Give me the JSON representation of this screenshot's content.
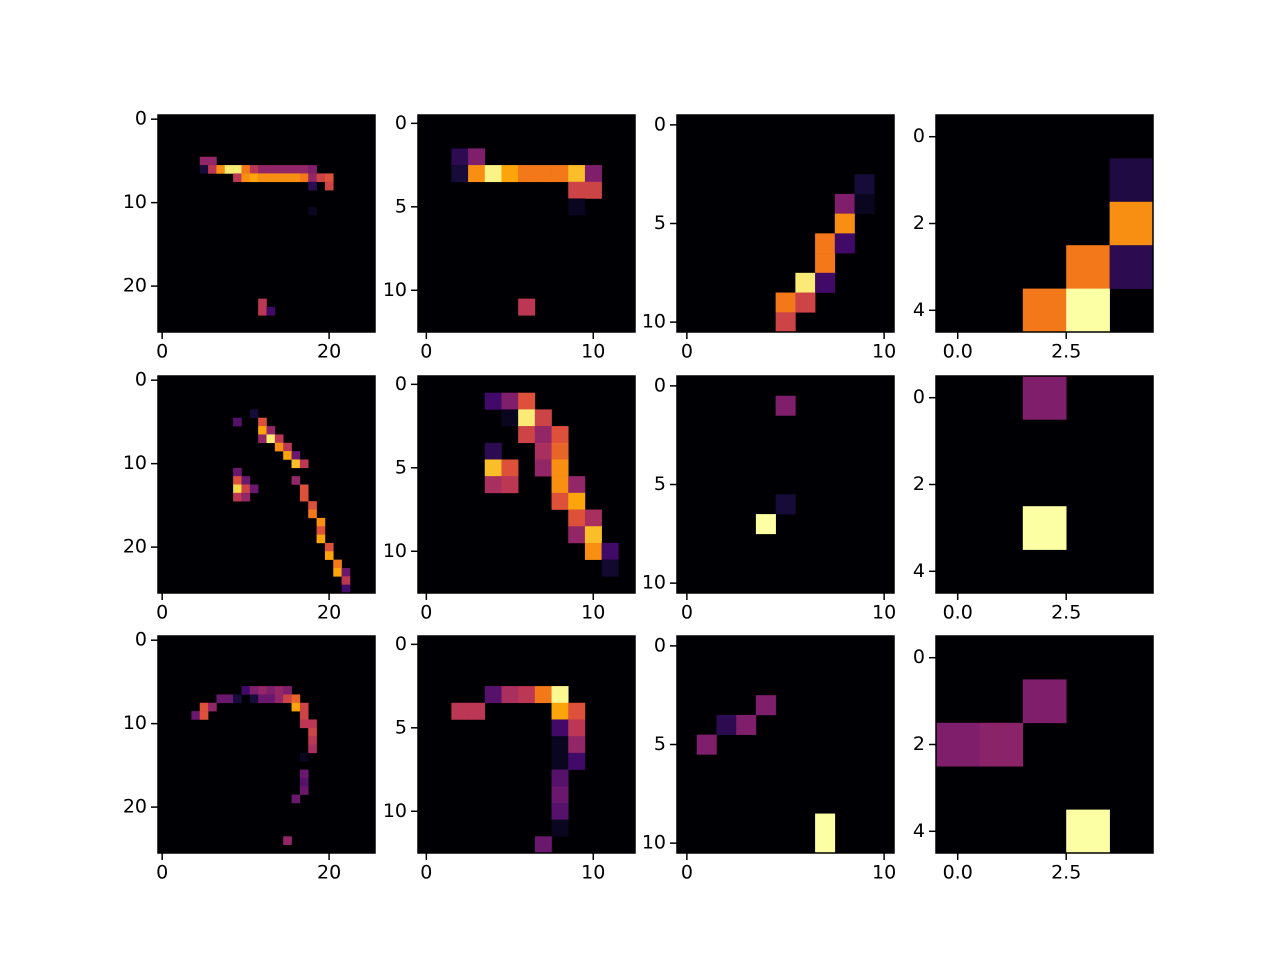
{
  "chart_data": [
    {
      "type": "heatmap",
      "colormap": "inferno",
      "xlim": [
        -0.5,
        25.5
      ],
      "ylim": [
        25.5,
        -0.5
      ],
      "xticks": [
        0,
        20
      ],
      "yticks": [
        0,
        10,
        20
      ],
      "cells": [
        [
          5,
          5,
          0.4
        ],
        [
          5,
          6,
          0.4
        ],
        [
          6,
          5,
          0.1
        ],
        [
          6,
          6,
          0.5
        ],
        [
          6,
          7,
          0.75
        ],
        [
          6,
          8,
          0.95
        ],
        [
          6,
          9,
          0.95
        ],
        [
          6,
          10,
          0.7
        ],
        [
          6,
          11,
          0.5
        ],
        [
          6,
          12,
          0.4
        ],
        [
          6,
          13,
          0.4
        ],
        [
          6,
          14,
          0.4
        ],
        [
          6,
          15,
          0.4
        ],
        [
          6,
          16,
          0.4
        ],
        [
          6,
          17,
          0.4
        ],
        [
          6,
          18,
          0.35
        ],
        [
          7,
          9,
          0.5
        ],
        [
          7,
          10,
          0.75
        ],
        [
          7,
          11,
          0.8
        ],
        [
          7,
          12,
          0.75
        ],
        [
          7,
          13,
          0.75
        ],
        [
          7,
          14,
          0.75
        ],
        [
          7,
          15,
          0.75
        ],
        [
          7,
          16,
          0.75
        ],
        [
          7,
          17,
          0.7
        ],
        [
          7,
          18,
          0.4
        ],
        [
          7,
          19,
          0.55
        ],
        [
          7,
          20,
          0.6
        ],
        [
          8,
          18,
          0.15
        ],
        [
          8,
          20,
          0.55
        ],
        [
          11,
          18,
          0.05
        ],
        [
          22,
          12,
          0.5
        ],
        [
          23,
          12,
          0.5
        ],
        [
          23,
          13,
          0.2
        ]
      ]
    },
    {
      "type": "heatmap",
      "colormap": "inferno",
      "xlim": [
        -0.5,
        12.5
      ],
      "ylim": [
        12.5,
        -0.5
      ],
      "xticks": [
        0,
        10
      ],
      "yticks": [
        0,
        5,
        10
      ],
      "cells": [
        [
          2,
          2,
          0.15
        ],
        [
          2,
          3,
          0.35
        ],
        [
          3,
          2,
          0.1
        ],
        [
          3,
          3,
          0.75
        ],
        [
          3,
          4,
          0.97
        ],
        [
          3,
          5,
          0.8
        ],
        [
          3,
          6,
          0.7
        ],
        [
          3,
          7,
          0.7
        ],
        [
          3,
          8,
          0.7
        ],
        [
          3,
          9,
          0.85
        ],
        [
          3,
          10,
          0.35
        ],
        [
          4,
          9,
          0.55
        ],
        [
          4,
          10,
          0.55
        ],
        [
          5,
          9,
          0.05
        ],
        [
          11,
          6,
          0.5
        ]
      ]
    },
    {
      "type": "heatmap",
      "colormap": "inferno",
      "xlim": [
        -0.5,
        10.5
      ],
      "ylim": [
        10.5,
        -0.5
      ],
      "xticks": [
        0,
        10
      ],
      "yticks": [
        0,
        5,
        10
      ],
      "cells": [
        [
          3,
          9,
          0.1
        ],
        [
          4,
          8,
          0.35
        ],
        [
          4,
          9,
          0.05
        ],
        [
          5,
          8,
          0.75
        ],
        [
          6,
          7,
          0.7
        ],
        [
          6,
          8,
          0.2
        ],
        [
          7,
          7,
          0.7
        ],
        [
          8,
          6,
          0.95
        ],
        [
          8,
          7,
          0.2
        ],
        [
          9,
          5,
          0.7
        ],
        [
          9,
          6,
          0.55
        ],
        [
          10,
          5,
          0.55
        ]
      ]
    },
    {
      "type": "heatmap",
      "colormap": "inferno",
      "xlim": [
        -0.5,
        4.5
      ],
      "ylim": [
        4.5,
        -0.5
      ],
      "xticks": [
        {
          "value": 0,
          "label": "0.0"
        },
        2.5
      ],
      "yticks": [
        0,
        2,
        4
      ],
      "cells": [
        [
          1,
          4,
          0.12
        ],
        [
          2,
          4,
          0.75
        ],
        [
          3,
          3,
          0.7
        ],
        [
          3,
          4,
          0.15
        ],
        [
          4,
          2,
          0.7
        ],
        [
          4,
          3,
          1
        ]
      ]
    },
    {
      "type": "heatmap",
      "colormap": "inferno",
      "xlim": [
        -0.5,
        25.5
      ],
      "ylim": [
        25.5,
        -0.5
      ],
      "xticks": [
        0,
        20
      ],
      "yticks": [
        0,
        10,
        20
      ],
      "cells": [
        [
          4,
          11,
          0.1
        ],
        [
          5,
          9,
          0.25
        ],
        [
          5,
          12,
          0.6
        ],
        [
          6,
          12,
          0.8
        ],
        [
          6,
          13,
          0.4
        ],
        [
          7,
          12,
          0.4
        ],
        [
          7,
          13,
          0.95
        ],
        [
          7,
          14,
          0.5
        ],
        [
          8,
          14,
          0.75
        ],
        [
          8,
          15,
          0.5
        ],
        [
          9,
          15,
          0.8
        ],
        [
          9,
          16,
          0.3
        ],
        [
          10,
          16,
          0.85
        ],
        [
          10,
          17,
          0.5
        ],
        [
          11,
          9,
          0.3
        ],
        [
          12,
          9,
          0.6
        ],
        [
          12,
          10,
          0.3
        ],
        [
          12,
          16,
          0.4
        ],
        [
          13,
          9,
          0.9
        ],
        [
          13,
          10,
          0.55
        ],
        [
          13,
          11,
          0.3
        ],
        [
          13,
          17,
          0.6
        ],
        [
          14,
          9,
          0.5
        ],
        [
          14,
          10,
          0.4
        ],
        [
          14,
          17,
          0.6
        ],
        [
          15,
          18,
          0.6
        ],
        [
          16,
          18,
          0.7
        ],
        [
          17,
          19,
          0.75
        ],
        [
          18,
          19,
          0.6
        ],
        [
          19,
          19,
          0.8
        ],
        [
          20,
          20,
          0.6
        ],
        [
          21,
          20,
          0.8
        ],
        [
          22,
          21,
          0.7
        ],
        [
          23,
          21,
          0.8
        ],
        [
          23,
          22,
          0.3
        ],
        [
          24,
          22,
          0.5
        ],
        [
          25,
          22,
          0.2
        ]
      ]
    },
    {
      "type": "heatmap",
      "colormap": "inferno",
      "xlim": [
        -0.5,
        12.5
      ],
      "ylim": [
        12.5,
        -0.5
      ],
      "xticks": [
        0,
        10
      ],
      "yticks": [
        0,
        5,
        10
      ],
      "cells": [
        [
          1,
          4,
          0.2
        ],
        [
          1,
          5,
          0.35
        ],
        [
          1,
          6,
          0.6
        ],
        [
          2,
          5,
          0.05
        ],
        [
          2,
          6,
          0.95
        ],
        [
          2,
          7,
          0.55
        ],
        [
          3,
          6,
          0.55
        ],
        [
          3,
          7,
          0.4
        ],
        [
          3,
          8,
          0.6
        ],
        [
          4,
          4,
          0.15
        ],
        [
          4,
          7,
          0.45
        ],
        [
          4,
          8,
          0.65
        ],
        [
          5,
          4,
          0.85
        ],
        [
          5,
          5,
          0.6
        ],
        [
          5,
          7,
          0.4
        ],
        [
          5,
          8,
          0.75
        ],
        [
          6,
          4,
          0.45
        ],
        [
          6,
          5,
          0.5
        ],
        [
          6,
          8,
          0.75
        ],
        [
          6,
          9,
          0.4
        ],
        [
          7,
          8,
          0.6
        ],
        [
          7,
          9,
          0.8
        ],
        [
          8,
          9,
          0.6
        ],
        [
          8,
          10,
          0.45
        ],
        [
          9,
          9,
          0.4
        ],
        [
          9,
          10,
          0.85
        ],
        [
          10,
          10,
          0.75
        ],
        [
          10,
          11,
          0.2
        ],
        [
          11,
          11,
          0.08
        ]
      ]
    },
    {
      "type": "heatmap",
      "colormap": "inferno",
      "xlim": [
        -0.5,
        10.5
      ],
      "ylim": [
        10.5,
        -0.5
      ],
      "xticks": [
        0,
        10
      ],
      "yticks": [
        0,
        5,
        10
      ],
      "cells": [
        [
          1,
          5,
          0.35
        ],
        [
          6,
          5,
          0.1
        ],
        [
          7,
          4,
          1
        ]
      ]
    },
    {
      "type": "heatmap",
      "colormap": "inferno",
      "xlim": [
        -0.5,
        4.5
      ],
      "ylim": [
        4.5,
        -0.5
      ],
      "xticks": [
        {
          "value": 0,
          "label": "0.0"
        },
        2.5
      ],
      "yticks": [
        0,
        2,
        4
      ],
      "cells": [
        [
          0,
          2,
          0.35
        ],
        [
          3,
          2,
          1
        ]
      ]
    },
    {
      "type": "heatmap",
      "colormap": "inferno",
      "xlim": [
        -0.5,
        25.5
      ],
      "ylim": [
        25.5,
        -0.5
      ],
      "xticks": [
        0,
        20
      ],
      "yticks": [
        0,
        10,
        20
      ],
      "cells": [
        [
          6,
          10,
          0.2
        ],
        [
          6,
          11,
          0.35
        ],
        [
          6,
          12,
          0.4
        ],
        [
          6,
          13,
          0.35
        ],
        [
          6,
          14,
          0.4
        ],
        [
          6,
          15,
          0.35
        ],
        [
          7,
          7,
          0.3
        ],
        [
          7,
          8,
          0.3
        ],
        [
          7,
          9,
          0.1
        ],
        [
          7,
          11,
          0.1
        ],
        [
          7,
          12,
          0.3
        ],
        [
          7,
          13,
          0.3
        ],
        [
          7,
          14,
          0.4
        ],
        [
          7,
          15,
          0.55
        ],
        [
          7,
          16,
          0.65
        ],
        [
          8,
          5,
          0.6
        ],
        [
          8,
          6,
          0.4
        ],
        [
          8,
          16,
          0.8
        ],
        [
          8,
          17,
          0.55
        ],
        [
          9,
          4,
          0.3
        ],
        [
          9,
          5,
          0.6
        ],
        [
          9,
          17,
          0.55
        ],
        [
          10,
          17,
          0.5
        ],
        [
          10,
          18,
          0.5
        ],
        [
          11,
          18,
          0.55
        ],
        [
          12,
          18,
          0.5
        ],
        [
          13,
          18,
          0.45
        ],
        [
          14,
          17,
          0.05
        ],
        [
          16,
          17,
          0.3
        ],
        [
          17,
          17,
          0.25
        ],
        [
          18,
          17,
          0.3
        ],
        [
          19,
          16,
          0.3
        ],
        [
          24,
          15,
          0.4
        ]
      ]
    },
    {
      "type": "heatmap",
      "colormap": "inferno",
      "xlim": [
        -0.5,
        12.5
      ],
      "ylim": [
        12.5,
        -0.5
      ],
      "xticks": [
        0,
        10
      ],
      "yticks": [
        0,
        5,
        10
      ],
      "cells": [
        [
          3,
          4,
          0.25
        ],
        [
          3,
          5,
          0.45
        ],
        [
          3,
          6,
          0.5
        ],
        [
          3,
          7,
          0.7
        ],
        [
          3,
          8,
          0.98
        ],
        [
          4,
          2,
          0.5
        ],
        [
          4,
          3,
          0.5
        ],
        [
          4,
          8,
          0.8
        ],
        [
          4,
          9,
          0.6
        ],
        [
          5,
          8,
          0.2
        ],
        [
          5,
          9,
          0.5
        ],
        [
          6,
          8,
          0.05
        ],
        [
          6,
          9,
          0.4
        ],
        [
          7,
          8,
          0.05
        ],
        [
          7,
          9,
          0.2
        ],
        [
          8,
          8,
          0.25
        ],
        [
          9,
          8,
          0.3
        ],
        [
          10,
          8,
          0.25
        ],
        [
          11,
          8,
          0.05
        ],
        [
          12,
          7,
          0.3
        ]
      ]
    },
    {
      "type": "heatmap",
      "colormap": "inferno",
      "xlim": [
        -0.5,
        10.5
      ],
      "ylim": [
        10.5,
        -0.5
      ],
      "xticks": [
        0,
        10
      ],
      "yticks": [
        0,
        5,
        10
      ],
      "cells": [
        [
          3,
          4,
          0.35
        ],
        [
          4,
          2,
          0.15
        ],
        [
          4,
          3,
          0.35
        ],
        [
          5,
          1,
          0.35
        ],
        [
          9,
          7,
          1
        ],
        [
          10,
          7,
          1
        ]
      ]
    },
    {
      "type": "heatmap",
      "colormap": "inferno",
      "xlim": [
        -0.5,
        4.5
      ],
      "ylim": [
        4.5,
        -0.5
      ],
      "xticks": [
        {
          "value": 0,
          "label": "0.0"
        },
        2.5
      ],
      "yticks": [
        0,
        2,
        4
      ],
      "cells": [
        [
          1,
          2,
          0.35
        ],
        [
          2,
          0,
          0.35
        ],
        [
          2,
          1,
          0.38
        ],
        [
          4,
          3,
          1
        ]
      ]
    }
  ]
}
